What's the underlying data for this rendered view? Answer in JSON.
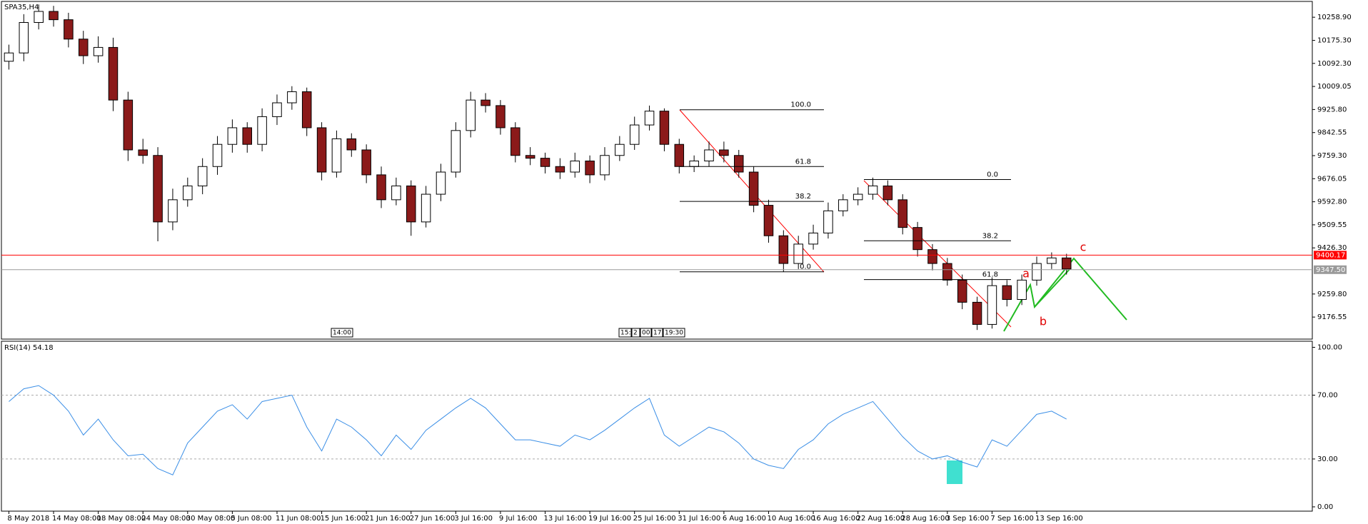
{
  "chart_data": [
    {
      "type": "candlestick",
      "title": "SPA35,H4",
      "categories": [
        "8 May 2018",
        null,
        null,
        "14 May 08:00",
        null,
        null,
        "18 May 08:00",
        null,
        null,
        "24 May 08:00",
        null,
        null,
        "30 May 08:00",
        null,
        null,
        "5 Jun 08:00",
        null,
        null,
        "11 Jun 08:00",
        null,
        null,
        "15 Jun 16:00",
        null,
        null,
        "21 Jun 16:00",
        null,
        null,
        "27 Jun 16:00",
        null,
        null,
        "3 Jul 16:00",
        null,
        null,
        "9 Jul 16:00",
        null,
        null,
        "13 Jul 16:00",
        null,
        null,
        "19 Jul 16:00",
        null,
        null,
        "25 Jul 16:00",
        null,
        null,
        "31 Jul 16:00",
        null,
        null,
        "6 Aug 16:00",
        null,
        null,
        "10 Aug 16:00",
        null,
        null,
        "16 Aug 16:00",
        null,
        null,
        "22 Aug 16:00",
        null,
        null,
        "28 Aug 16:00",
        null,
        null,
        "3 Sep 16:00",
        null,
        null,
        "7 Sep 16:00",
        null,
        null,
        "13 Sep 16:00",
        null,
        null
      ],
      "open": [
        10100,
        10130,
        10240,
        10280,
        10250,
        10180,
        10120,
        10150,
        9960,
        9780,
        9760,
        9520,
        9600,
        9650,
        9720,
        9800,
        9860,
        9800,
        9900,
        9950,
        9990,
        9860,
        9700,
        9820,
        9780,
        9690,
        9600,
        9650,
        9520,
        9620,
        9700,
        9850,
        9960,
        9940,
        9860,
        9760,
        9750,
        9720,
        9700,
        9740,
        9690,
        9760,
        9800,
        9870,
        9920,
        9800,
        9720,
        9740,
        9780,
        9760,
        9700,
        9580,
        9470,
        9370,
        9440,
        9480,
        9560,
        9600,
        9620,
        9650,
        9600,
        9500,
        9420,
        9370,
        9310,
        9230,
        9150,
        9290,
        9240,
        9310,
        9370,
        9390
      ],
      "high": [
        10160,
        10270,
        10305,
        10300,
        10275,
        10210,
        10190,
        10185,
        9990,
        9820,
        9790,
        9640,
        9680,
        9750,
        9830,
        9890,
        9880,
        9930,
        9980,
        10010,
        10005,
        9880,
        9850,
        9840,
        9800,
        9720,
        9680,
        9670,
        9650,
        9730,
        9880,
        9990,
        9985,
        9960,
        9880,
        9790,
        9770,
        9750,
        9770,
        9760,
        9790,
        9830,
        9900,
        9940,
        9930,
        9820,
        9760,
        9810,
        9810,
        9780,
        9720,
        9600,
        9490,
        9470,
        9510,
        9590,
        9620,
        9645,
        9680,
        9670,
        9620,
        9520,
        9440,
        9390,
        9330,
        9250,
        9320,
        9310,
        9330,
        9395,
        9410,
        9405
      ],
      "low": [
        10070,
        10100,
        10215,
        10225,
        10150,
        10090,
        10095,
        9920,
        9740,
        9730,
        9450,
        9490,
        9575,
        9620,
        9690,
        9770,
        9770,
        9775,
        9870,
        9925,
        9830,
        9670,
        9680,
        9755,
        9660,
        9570,
        9580,
        9470,
        9500,
        9595,
        9680,
        9825,
        9915,
        9835,
        9735,
        9725,
        9695,
        9675,
        9680,
        9660,
        9670,
        9740,
        9780,
        9850,
        9775,
        9695,
        9700,
        9720,
        9735,
        9680,
        9555,
        9445,
        9340,
        9350,
        9420,
        9460,
        9540,
        9580,
        9600,
        9580,
        9475,
        9395,
        9345,
        9290,
        9205,
        9130,
        9135,
        9215,
        9220,
        9290,
        9350,
        9330
      ],
      "close": [
        10130,
        10240,
        10280,
        10250,
        10180,
        10120,
        10150,
        9960,
        9780,
        9760,
        9520,
        9600,
        9650,
        9720,
        9800,
        9860,
        9800,
        9900,
        9950,
        9990,
        9860,
        9700,
        9820,
        9780,
        9690,
        9600,
        9650,
        9520,
        9620,
        9700,
        9850,
        9960,
        9940,
        9860,
        9760,
        9750,
        9720,
        9700,
        9740,
        9690,
        9760,
        9800,
        9870,
        9920,
        9800,
        9720,
        9740,
        9780,
        9760,
        9700,
        9580,
        9470,
        9370,
        9440,
        9480,
        9560,
        9600,
        9620,
        9650,
        9600,
        9500,
        9420,
        9370,
        9310,
        9230,
        9150,
        9290,
        9240,
        9310,
        9370,
        9390,
        9350
      ],
      "up_color": "#ffffff",
      "down_color": "#8b1a1a",
      "ylim": [
        9097,
        10316
      ],
      "yticks": [
        {
          "value": 10258.9,
          "label": "10258.90"
        },
        {
          "value": 10175.3,
          "label": "10175.30"
        },
        {
          "value": 10092.3,
          "label": "10092.30"
        },
        {
          "value": 10009.05,
          "label": "10009.05"
        },
        {
          "value": 9925.8,
          "label": "9925.80"
        },
        {
          "value": 9842.55,
          "label": "9842.55"
        },
        {
          "value": 9759.3,
          "label": "9759.30"
        },
        {
          "value": 9676.05,
          "label": "9676.05"
        },
        {
          "value": 9592.8,
          "label": "9592.80"
        },
        {
          "value": 9509.55,
          "label": "9509.55"
        },
        {
          "value": 9426.3,
          "label": "9426.30"
        },
        {
          "value": 9259.8,
          "label": "9259.80"
        },
        {
          "value": 9176.55,
          "label": "9176.55"
        }
      ],
      "price_lines": [
        {
          "value": 9400.17,
          "label": "9400.17",
          "color": "#ff0000"
        },
        {
          "value": 9347.5,
          "label": "9347.50",
          "color": "#9a9a9a"
        }
      ],
      "fibonacci": [
        [
          {
            "value": 9925,
            "label": "100.0"
          },
          {
            "value": 9720,
            "label": "61.8"
          },
          {
            "value": 9594,
            "label": "38.2"
          },
          {
            "value": 9340,
            "label": "0.0"
          }
        ],
        [
          {
            "value": 9673,
            "label": "0.0"
          },
          {
            "value": 9452,
            "label": "38.2"
          },
          {
            "value": 9312,
            "label": "61.8"
          }
        ]
      ],
      "wave_labels": [
        "a",
        "b",
        "c"
      ],
      "time_markers": [
        "14:00",
        "15:",
        "2",
        "00",
        "17",
        "19:30"
      ]
    },
    {
      "type": "line",
      "title": "RSI(14) 54.18",
      "color": "#3a8ee6",
      "values": [
        66,
        74,
        76,
        70,
        60,
        45,
        55,
        42,
        32,
        33,
        24,
        20,
        40,
        50,
        60,
        64,
        55,
        66,
        68,
        70,
        50,
        35,
        55,
        50,
        42,
        32,
        45,
        36,
        48,
        55,
        62,
        68,
        62,
        52,
        42,
        42,
        40,
        38,
        45,
        42,
        48,
        55,
        62,
        68,
        45,
        38,
        44,
        50,
        47,
        40,
        30,
        26,
        24,
        36,
        42,
        52,
        58,
        62,
        66,
        55,
        44,
        35,
        30,
        32,
        28,
        25,
        42,
        38,
        48,
        58,
        60,
        55
      ],
      "ylim": [
        -2.7,
        103.8
      ],
      "yticks": [
        {
          "value": 100,
          "label": "100.00"
        },
        {
          "value": 70,
          "label": "70.00"
        },
        {
          "value": 30,
          "label": "30.00"
        },
        {
          "value": 0,
          "label": "0.00"
        }
      ]
    }
  ]
}
